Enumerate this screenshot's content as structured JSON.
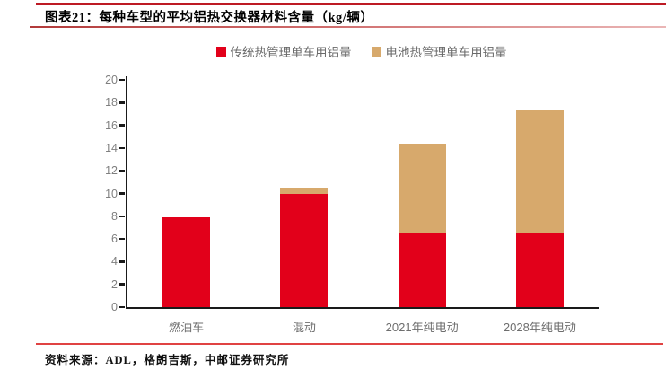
{
  "header": {
    "figure_label_title": "图表21：每种车型的平均铝热交换器材料含量（kg/辆）"
  },
  "footer": {
    "source": "资料来源：ADL，格朗吉斯，中邮证券研究所"
  },
  "chart_data": {
    "type": "bar",
    "stacked": true,
    "title": "每种车型的平均铝热交换器材料含量（kg/辆）",
    "unit": "kg/辆",
    "categories": [
      "燃油车",
      "混动",
      "2021年纯电动",
      "2028年纯电动"
    ],
    "series": [
      {
        "name": "传统热管理单车用铝量",
        "color": "#e2001a",
        "values": [
          7.9,
          10.0,
          6.5,
          6.5
        ]
      },
      {
        "name": "电池热管理单车用铝量",
        "color": "#d7a96c",
        "values": [
          0,
          0.5,
          7.9,
          10.9
        ]
      }
    ],
    "stacked_totals": [
      7.9,
      10.5,
      14.4,
      17.4
    ],
    "ylim": [
      0,
      20
    ],
    "ytick_step": 2,
    "ytick_labels": [
      "0",
      "2",
      "4",
      "6",
      "8",
      "10",
      "12",
      "14",
      "16",
      "18",
      "20"
    ],
    "grid": false,
    "legend_position": "top",
    "axis_color": "#1a1a1a",
    "tick_label_color": "#7f7f7f"
  }
}
